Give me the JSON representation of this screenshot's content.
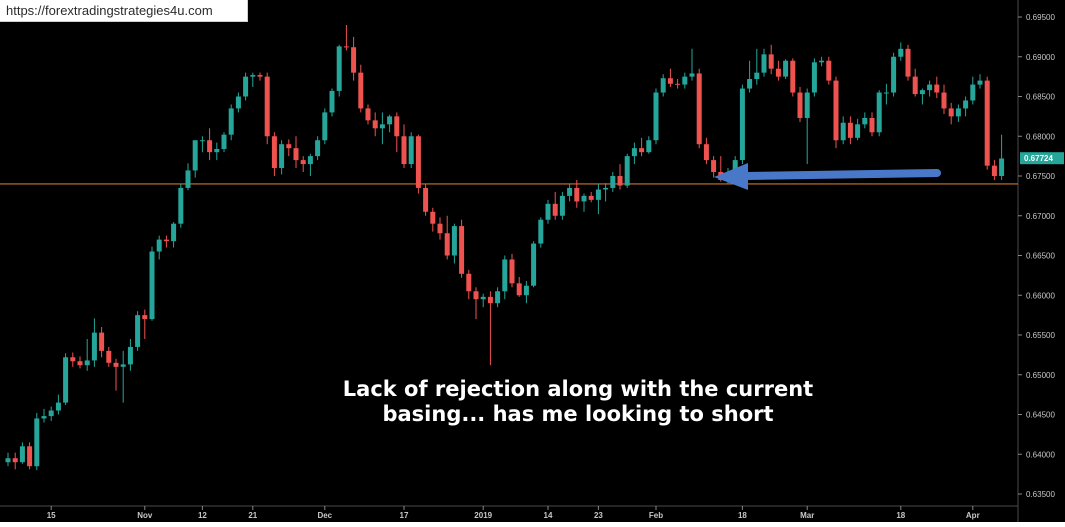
{
  "browser": {
    "url": "https://forextradingstrategies4u.com"
  },
  "colors": {
    "up": "#26a69a",
    "down": "#ef5350",
    "level": "#c8762a",
    "arrow": "#4a78c8",
    "price_tag": "#26a69a"
  },
  "chart_data": {
    "type": "candlestick",
    "title": "",
    "xlabel": "",
    "ylabel": "",
    "ylim": [
      0.6345,
      0.6963
    ],
    "y_ticks": [
      "0.69500",
      "0.69000",
      "0.68500",
      "0.68000",
      "0.67500",
      "0.67000",
      "0.66500",
      "0.66000",
      "0.65500",
      "0.65000",
      "0.64500",
      "0.64000",
      "0.63500"
    ],
    "x_ticks": [
      {
        "label": "15",
        "at": 6
      },
      {
        "label": "Nov",
        "at": 19
      },
      {
        "label": "12",
        "at": 27
      },
      {
        "label": "21",
        "at": 34
      },
      {
        "label": "Dec",
        "at": 44
      },
      {
        "label": "17",
        "at": 55
      },
      {
        "label": "2019",
        "at": 66
      },
      {
        "label": "14",
        "at": 75
      },
      {
        "label": "23",
        "at": 82
      },
      {
        "label": "Feb",
        "at": 90
      },
      {
        "label": "18",
        "at": 102
      },
      {
        "label": "Mar",
        "at": 111
      },
      {
        "label": "18",
        "at": 124
      },
      {
        "label": "Apr",
        "at": 134
      }
    ],
    "current_price": "0.67724",
    "support_level": 0.674,
    "annotation": [
      "Lack of rejection along with the current",
      "basing... has me looking to short"
    ],
    "candles": [
      [
        0.639,
        0.6402,
        0.6385,
        0.6395
      ],
      [
        0.6395,
        0.6402,
        0.6381,
        0.639
      ],
      [
        0.639,
        0.6415,
        0.6388,
        0.641
      ],
      [
        0.641,
        0.6415,
        0.6381,
        0.6385
      ],
      [
        0.6385,
        0.6452,
        0.638,
        0.6445
      ],
      [
        0.6445,
        0.6457,
        0.644,
        0.6448
      ],
      [
        0.6448,
        0.646,
        0.6442,
        0.6455
      ],
      [
        0.6455,
        0.6475,
        0.645,
        0.6465
      ],
      [
        0.6465,
        0.6527,
        0.6462,
        0.6522
      ],
      [
        0.6522,
        0.6528,
        0.651,
        0.6517
      ],
      [
        0.6517,
        0.6523,
        0.6508,
        0.6512
      ],
      [
        0.6512,
        0.6545,
        0.6505,
        0.6518
      ],
      [
        0.6518,
        0.6571,
        0.651,
        0.6553
      ],
      [
        0.6553,
        0.656,
        0.6522,
        0.653
      ],
      [
        0.653,
        0.6535,
        0.651,
        0.6515
      ],
      [
        0.6515,
        0.652,
        0.648,
        0.651
      ],
      [
        0.651,
        0.653,
        0.6465,
        0.6513
      ],
      [
        0.6513,
        0.6545,
        0.6505,
        0.6535
      ],
      [
        0.6535,
        0.658,
        0.653,
        0.6575
      ],
      [
        0.6575,
        0.6582,
        0.6545,
        0.657
      ],
      [
        0.657,
        0.6661,
        0.6568,
        0.6655
      ],
      [
        0.6655,
        0.6675,
        0.6645,
        0.667
      ],
      [
        0.667,
        0.6675,
        0.666,
        0.6668
      ],
      [
        0.6668,
        0.6692,
        0.666,
        0.669
      ],
      [
        0.669,
        0.674,
        0.6685,
        0.6735
      ],
      [
        0.6735,
        0.6766,
        0.6732,
        0.6757
      ],
      [
        0.6757,
        0.6795,
        0.6748,
        0.6795
      ],
      [
        0.6795,
        0.68,
        0.678,
        0.6795
      ],
      [
        0.6795,
        0.681,
        0.677,
        0.678
      ],
      [
        0.678,
        0.6792,
        0.677,
        0.6784
      ],
      [
        0.6784,
        0.6805,
        0.678,
        0.6802
      ],
      [
        0.6802,
        0.684,
        0.6795,
        0.6835
      ],
      [
        0.6835,
        0.6855,
        0.683,
        0.685
      ],
      [
        0.685,
        0.688,
        0.6845,
        0.6875
      ],
      [
        0.6875,
        0.688,
        0.6862,
        0.6877
      ],
      [
        0.6877,
        0.688,
        0.687,
        0.6875
      ],
      [
        0.6875,
        0.688,
        0.679,
        0.68
      ],
      [
        0.68,
        0.6805,
        0.675,
        0.676
      ],
      [
        0.676,
        0.6795,
        0.6752,
        0.679
      ],
      [
        0.679,
        0.6796,
        0.6775,
        0.6785
      ],
      [
        0.6785,
        0.68,
        0.676,
        0.677
      ],
      [
        0.677,
        0.6775,
        0.6755,
        0.6765
      ],
      [
        0.6765,
        0.6778,
        0.675,
        0.6775
      ],
      [
        0.6775,
        0.68,
        0.677,
        0.6795
      ],
      [
        0.6795,
        0.6835,
        0.679,
        0.683
      ],
      [
        0.683,
        0.686,
        0.6825,
        0.6857
      ],
      [
        0.6857,
        0.6915,
        0.685,
        0.6913
      ],
      [
        0.6913,
        0.694,
        0.6908,
        0.6912
      ],
      [
        0.6912,
        0.6925,
        0.687,
        0.688
      ],
      [
        0.688,
        0.689,
        0.683,
        0.6835
      ],
      [
        0.6835,
        0.684,
        0.6815,
        0.682
      ],
      [
        0.682,
        0.683,
        0.68,
        0.681
      ],
      [
        0.681,
        0.683,
        0.679,
        0.6815
      ],
      [
        0.6815,
        0.6827,
        0.6805,
        0.6825
      ],
      [
        0.6825,
        0.683,
        0.678,
        0.68
      ],
      [
        0.68,
        0.6815,
        0.676,
        0.6765
      ],
      [
        0.6765,
        0.6805,
        0.676,
        0.68
      ],
      [
        0.68,
        0.6802,
        0.6728,
        0.6735
      ],
      [
        0.6735,
        0.674,
        0.67,
        0.6705
      ],
      [
        0.6705,
        0.671,
        0.668,
        0.669
      ],
      [
        0.669,
        0.6698,
        0.667,
        0.6678
      ],
      [
        0.6678,
        0.67,
        0.6645,
        0.665
      ],
      [
        0.665,
        0.669,
        0.664,
        0.6687
      ],
      [
        0.6687,
        0.6695,
        0.6622,
        0.6627
      ],
      [
        0.6627,
        0.6632,
        0.6595,
        0.6605
      ],
      [
        0.6605,
        0.661,
        0.657,
        0.6595
      ],
      [
        0.6595,
        0.6602,
        0.6585,
        0.6598
      ],
      [
        0.6598,
        0.6605,
        0.6512,
        0.659
      ],
      [
        0.659,
        0.661,
        0.6585,
        0.6605
      ],
      [
        0.6605,
        0.665,
        0.6595,
        0.6645
      ],
      [
        0.6645,
        0.6652,
        0.661,
        0.6615
      ],
      [
        0.6615,
        0.6623,
        0.6598,
        0.66
      ],
      [
        0.66,
        0.6618,
        0.659,
        0.6612
      ],
      [
        0.6612,
        0.6668,
        0.661,
        0.6665
      ],
      [
        0.6665,
        0.6698,
        0.666,
        0.6695
      ],
      [
        0.6695,
        0.672,
        0.669,
        0.6715
      ],
      [
        0.6715,
        0.673,
        0.6695,
        0.67
      ],
      [
        0.67,
        0.673,
        0.6695,
        0.6725
      ],
      [
        0.6725,
        0.674,
        0.6718,
        0.6735
      ],
      [
        0.6735,
        0.6745,
        0.671,
        0.6718
      ],
      [
        0.6718,
        0.6728,
        0.6705,
        0.6725
      ],
      [
        0.6725,
        0.673,
        0.6717,
        0.672
      ],
      [
        0.672,
        0.674,
        0.6702,
        0.6733
      ],
      [
        0.6733,
        0.6741,
        0.6718,
        0.6735
      ],
      [
        0.6735,
        0.6755,
        0.673,
        0.675
      ],
      [
        0.675,
        0.6765,
        0.6733,
        0.6738
      ],
      [
        0.6738,
        0.6778,
        0.6735,
        0.6775
      ],
      [
        0.6775,
        0.6792,
        0.6765,
        0.6785
      ],
      [
        0.6785,
        0.6798,
        0.6775,
        0.678
      ],
      [
        0.678,
        0.68,
        0.6778,
        0.6795
      ],
      [
        0.6795,
        0.686,
        0.679,
        0.6855
      ],
      [
        0.6855,
        0.6878,
        0.685,
        0.6873
      ],
      [
        0.6873,
        0.6885,
        0.6862,
        0.6866
      ],
      [
        0.6866,
        0.6872,
        0.686,
        0.6865
      ],
      [
        0.6865,
        0.688,
        0.686,
        0.6875
      ],
      [
        0.6875,
        0.691,
        0.687,
        0.6879
      ],
      [
        0.6879,
        0.6885,
        0.6785,
        0.679
      ],
      [
        0.679,
        0.6798,
        0.6765,
        0.677
      ],
      [
        0.677,
        0.6775,
        0.6748,
        0.6755
      ],
      [
        0.6755,
        0.6775,
        0.6743,
        0.6745
      ],
      [
        0.6745,
        0.676,
        0.674,
        0.6752
      ],
      [
        0.6752,
        0.6775,
        0.6745,
        0.677
      ],
      [
        0.677,
        0.6865,
        0.6765,
        0.686
      ],
      [
        0.686,
        0.6895,
        0.6855,
        0.6872
      ],
      [
        0.6872,
        0.691,
        0.6865,
        0.688
      ],
      [
        0.688,
        0.691,
        0.6875,
        0.6903
      ],
      [
        0.6903,
        0.6915,
        0.6878,
        0.6885
      ],
      [
        0.6885,
        0.6895,
        0.687,
        0.6875
      ],
      [
        0.6875,
        0.6897,
        0.6872,
        0.6895
      ],
      [
        0.6895,
        0.6898,
        0.685,
        0.6855
      ],
      [
        0.6855,
        0.6862,
        0.6818,
        0.6823
      ],
      [
        0.6823,
        0.686,
        0.6765,
        0.6855
      ],
      [
        0.6855,
        0.6898,
        0.685,
        0.6893
      ],
      [
        0.6893,
        0.69,
        0.6888,
        0.6895
      ],
      [
        0.6895,
        0.69,
        0.6865,
        0.687
      ],
      [
        0.687,
        0.6875,
        0.6785,
        0.6795
      ],
      [
        0.6795,
        0.6825,
        0.679,
        0.6817
      ],
      [
        0.6817,
        0.6825,
        0.679,
        0.6798
      ],
      [
        0.6798,
        0.6822,
        0.6795,
        0.6815
      ],
      [
        0.6815,
        0.683,
        0.681,
        0.6823
      ],
      [
        0.6823,
        0.683,
        0.68,
        0.6805
      ],
      [
        0.6805,
        0.6858,
        0.68,
        0.6855
      ],
      [
        0.6855,
        0.6866,
        0.684,
        0.6855
      ],
      [
        0.6855,
        0.6905,
        0.685,
        0.69
      ],
      [
        0.69,
        0.6918,
        0.6895,
        0.691
      ],
      [
        0.691,
        0.6915,
        0.687,
        0.6875
      ],
      [
        0.6875,
        0.6885,
        0.685,
        0.6853
      ],
      [
        0.6853,
        0.686,
        0.684,
        0.6858
      ],
      [
        0.6858,
        0.687,
        0.685,
        0.6865
      ],
      [
        0.6865,
        0.6875,
        0.6848,
        0.6855
      ],
      [
        0.6855,
        0.6865,
        0.6828,
        0.6835
      ],
      [
        0.6835,
        0.6842,
        0.6815,
        0.6825
      ],
      [
        0.6825,
        0.684,
        0.6818,
        0.6835
      ],
      [
        0.6835,
        0.685,
        0.6825,
        0.6845
      ],
      [
        0.6845,
        0.6875,
        0.684,
        0.6865
      ],
      [
        0.6865,
        0.6878,
        0.686,
        0.687
      ],
      [
        0.687,
        0.6875,
        0.6758,
        0.6763
      ],
      [
        0.6763,
        0.677,
        0.6745,
        0.675
      ],
      [
        0.675,
        0.6802,
        0.6745,
        0.6772
      ]
    ]
  }
}
